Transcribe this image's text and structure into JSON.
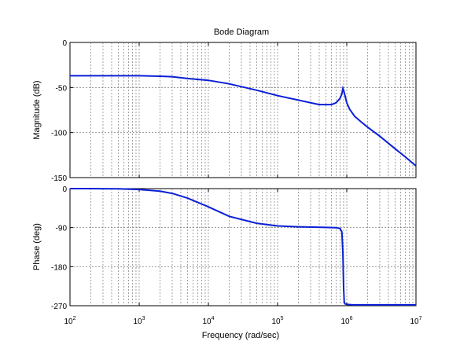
{
  "chart_data": {
    "type": "line",
    "title": "Bode Diagram",
    "xlabel": "Frequency  (rad/sec)",
    "x_scale": "log",
    "xlim": [
      100,
      10000000
    ],
    "x_ticks": [
      {
        "value": 100,
        "base": "10",
        "exp": "2"
      },
      {
        "value": 1000,
        "base": "10",
        "exp": "3"
      },
      {
        "value": 10000,
        "base": "10",
        "exp": "4"
      },
      {
        "value": 100000,
        "base": "10",
        "exp": "5"
      },
      {
        "value": 1000000,
        "base": "10",
        "exp": "6"
      },
      {
        "value": 10000000,
        "base": "10",
        "exp": "7"
      }
    ],
    "grid": true,
    "line_color": "#0a1fd6",
    "subplots": [
      {
        "name": "magnitude",
        "ylabel": "Magnitude (dB)",
        "ylim": [
          -150,
          0
        ],
        "y_ticks": [
          0,
          -50,
          -100,
          -150
        ],
        "x": [
          100,
          200,
          500,
          1000,
          2000,
          3000,
          5000,
          10000,
          20000,
          50000,
          100000,
          200000,
          400000,
          600000,
          700000,
          800000,
          850000,
          880000,
          900000,
          950000,
          1000000,
          1100000,
          1300000,
          1600000,
          2000000,
          3000000,
          5000000,
          7000000,
          10000000
        ],
        "y": [
          -37,
          -37,
          -37,
          -37,
          -37.5,
          -38,
          -40,
          -42,
          -46,
          -53,
          -59,
          -64,
          -69,
          -69,
          -67,
          -62,
          -57,
          -51,
          -53,
          -60,
          -67,
          -74,
          -82,
          -88,
          -94,
          -104,
          -118,
          -127,
          -137
        ]
      },
      {
        "name": "phase",
        "ylabel": "Phase (deg)",
        "ylim": [
          -270,
          0
        ],
        "y_ticks": [
          0,
          -90,
          -180,
          -270
        ],
        "x": [
          100,
          200,
          500,
          1000,
          2000,
          3000,
          5000,
          10000,
          20000,
          50000,
          100000,
          200000,
          500000,
          700000,
          800000,
          850000,
          880000,
          900000,
          920000,
          950000,
          1000000,
          1200000,
          2000000,
          5000000,
          10000000
        ],
        "y": [
          0,
          0,
          -0.5,
          -2,
          -6,
          -11,
          -22,
          -42,
          -64,
          -80,
          -86,
          -88,
          -89.5,
          -90,
          -92,
          -100,
          -150,
          -230,
          -262,
          -266,
          -267,
          -268,
          -268,
          -268,
          -268
        ]
      }
    ]
  }
}
